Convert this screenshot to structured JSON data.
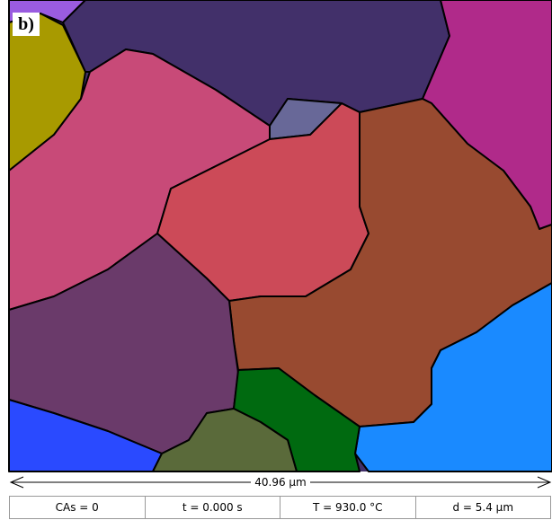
{
  "panel_label": "b)",
  "scale_bar": "40.96 µm",
  "status": [
    "CAs = 0",
    "t = 0.000 s",
    "T = 930.0 °C",
    "d = 5.4 µm"
  ]
}
